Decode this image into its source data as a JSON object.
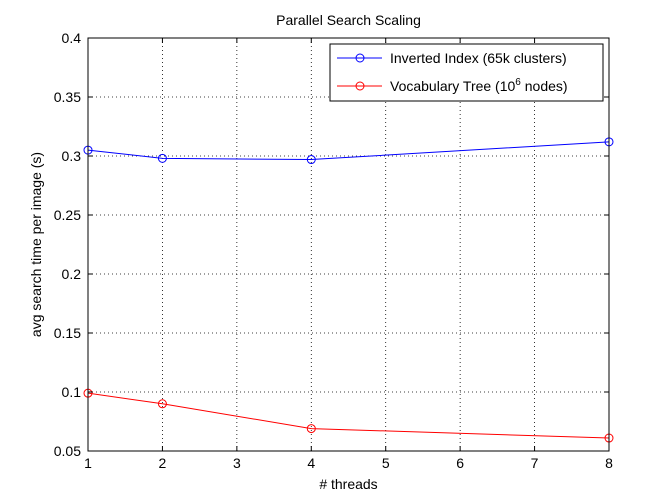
{
  "chart_data": {
    "type": "line",
    "title": "Parallel Search Scaling",
    "xlabel": "# threads",
    "ylabel": "avg search time per image (s)",
    "xlim": [
      1,
      8
    ],
    "ylim": [
      0.05,
      0.4
    ],
    "xticks": [
      "1",
      "2",
      "3",
      "4",
      "5",
      "6",
      "7",
      "8"
    ],
    "yticks": [
      "0.05",
      "0.1",
      "0.15",
      "0.2",
      "0.25",
      "0.3",
      "0.35",
      "0.4"
    ],
    "grid": true,
    "legend_position": "top-right",
    "series": [
      {
        "name": "Inverted Index (65k clusters)",
        "color": "#0000ff",
        "marker": "circle",
        "x": [
          1,
          2,
          4,
          8
        ],
        "y": [
          0.305,
          0.298,
          0.297,
          0.312
        ]
      },
      {
        "name_base": "Vocabulary Tree (10",
        "name_sup": "6",
        "name_tail": " nodes)",
        "color": "#ff0000",
        "marker": "circle",
        "x": [
          1,
          2,
          4,
          8
        ],
        "y": [
          0.099,
          0.09,
          0.069,
          0.061
        ]
      }
    ]
  }
}
